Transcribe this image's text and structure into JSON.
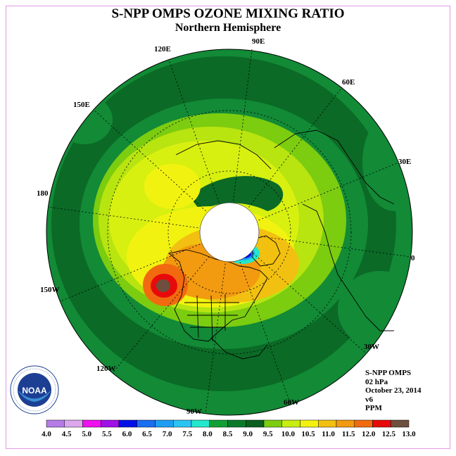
{
  "title": "S-NPP OMPS OZONE MIXING RATIO",
  "subtitle": "Northern Hemisphere",
  "longitude_labels": [
    "90E",
    "60E",
    "30E",
    "0",
    "30W",
    "60W",
    "90W",
    "120W",
    "150W",
    "180",
    "150E",
    "120E"
  ],
  "info": {
    "instrument": "S-NPP OMPS",
    "level": "02 hPa",
    "date": "October 23, 2014",
    "version": "v6",
    "units": "PPM"
  },
  "logo": {
    "text": "NOAA",
    "icon": "noaa-logo"
  },
  "colorbar": {
    "ticks": [
      "4.0",
      "4.5",
      "5.0",
      "5.5",
      "6.0",
      "6.5",
      "7.0",
      "7.5",
      "8.0",
      "8.5",
      "9.0",
      "9.5",
      "10.0",
      "10.5",
      "11.0",
      "11.5",
      "12.0",
      "12.5",
      "13.0"
    ],
    "colors": [
      "#b57be6",
      "#dca7ee",
      "#ee10ee",
      "#a010e8",
      "#0010e6",
      "#1a6ef0",
      "#1e9ef2",
      "#2ac4f4",
      "#22e8cc",
      "#12a036",
      "#0a7a2a",
      "#0a5e1e",
      "#7ccc10",
      "#c8ee10",
      "#f2f210",
      "#f2c010",
      "#f29a10",
      "#f26a10",
      "#e80a0a",
      "#6e4e3e"
    ]
  }
}
